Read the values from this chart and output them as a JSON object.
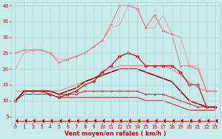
{
  "x": [
    0,
    1,
    2,
    3,
    4,
    5,
    6,
    7,
    8,
    9,
    10,
    11,
    12,
    13,
    14,
    15,
    16,
    17,
    18,
    19,
    20,
    21,
    22,
    23
  ],
  "series": [
    {
      "label": "line1_lightpink_plain_rising",
      "color": "#f0a0a0",
      "lw": 0.8,
      "marker": null,
      "ms": 0,
      "y": [
        20,
        25,
        26,
        26,
        25,
        23,
        23,
        24,
        25,
        27,
        29,
        33,
        34,
        40,
        40,
        33,
        33,
        37,
        31,
        30,
        21,
        21,
        13,
        13
      ]
    },
    {
      "label": "line2_pink_diamond",
      "color": "#f07070",
      "lw": 0.8,
      "marker": "D",
      "ms": 2,
      "y": [
        25,
        26,
        26,
        26,
        25,
        22,
        23,
        24,
        25,
        27,
        29,
        34,
        40,
        40,
        39,
        33,
        37,
        32,
        31,
        21,
        21,
        20,
        13,
        13
      ]
    },
    {
      "label": "line3_medpink_plain",
      "color": "#e08080",
      "lw": 0.8,
      "marker": null,
      "ms": 0,
      "y": [
        13,
        13,
        13,
        13,
        13,
        13,
        14,
        15,
        16,
        17,
        19,
        20,
        21,
        21,
        21,
        21,
        21,
        21,
        20,
        18,
        16,
        14,
        13,
        13
      ]
    },
    {
      "label": "line4_red_diamond_mid",
      "color": "#cc0000",
      "lw": 0.9,
      "marker": "D",
      "ms": 2.5,
      "y": [
        10,
        13,
        13,
        13,
        12,
        11,
        12,
        13,
        15,
        16,
        19,
        21,
        24,
        25,
        24,
        21,
        21,
        21,
        21,
        19,
        15,
        15,
        8,
        8
      ]
    },
    {
      "label": "line5_darkred_smooth",
      "color": "#990000",
      "lw": 1.2,
      "marker": null,
      "ms": 0,
      "y": [
        10,
        13,
        13,
        13,
        13,
        12,
        13,
        14,
        16,
        17,
        18,
        19,
        20,
        20,
        20,
        19,
        18,
        17,
        16,
        13,
        10,
        9,
        8,
        8
      ]
    },
    {
      "label": "line6_red_small_flat",
      "color": "#cc1111",
      "lw": 0.7,
      "marker": "D",
      "ms": 1.5,
      "y": [
        10,
        13,
        13,
        13,
        13,
        12,
        12,
        12,
        13,
        13,
        13,
        13,
        13,
        13,
        13,
        12,
        12,
        12,
        11,
        10,
        9,
        8,
        8,
        8
      ]
    },
    {
      "label": "line7_red_lower",
      "color": "#cc0000",
      "lw": 0.7,
      "marker": null,
      "ms": 0,
      "y": [
        10,
        12,
        12,
        12,
        12,
        11,
        11,
        11,
        11,
        11,
        11,
        11,
        11,
        11,
        11,
        10,
        10,
        10,
        9,
        8,
        7,
        7,
        7,
        7
      ]
    },
    {
      "label": "line8_arrow_bottom",
      "color": "#cc0000",
      "lw": 0.7,
      "marker": 4,
      "ms": 4,
      "y": [
        3.5,
        3.5,
        3.5,
        3.5,
        3.5,
        3.5,
        3.5,
        3.5,
        3.5,
        3.5,
        3.5,
        3.5,
        3.5,
        3.5,
        3.5,
        3.5,
        3.5,
        3.5,
        3.5,
        3.5,
        3.5,
        3.5,
        3.5,
        3.5
      ]
    }
  ],
  "xlabel": "Vent moyen/en rafales ( km/h )",
  "xlim": [
    -0.5,
    23.5
  ],
  "ylim": [
    3,
    41
  ],
  "yticks": [
    5,
    10,
    15,
    20,
    25,
    30,
    35,
    40
  ],
  "xticks": [
    0,
    1,
    2,
    3,
    4,
    5,
    6,
    7,
    8,
    9,
    10,
    11,
    12,
    13,
    14,
    15,
    16,
    17,
    18,
    19,
    20,
    21,
    22,
    23
  ],
  "bg_color": "#c8ecec",
  "grid_color": "#a8d4d4",
  "tick_color": "#cc0000",
  "label_color": "#cc0000",
  "tick_fontsize": 5.0,
  "xlabel_fontsize": 6.0
}
